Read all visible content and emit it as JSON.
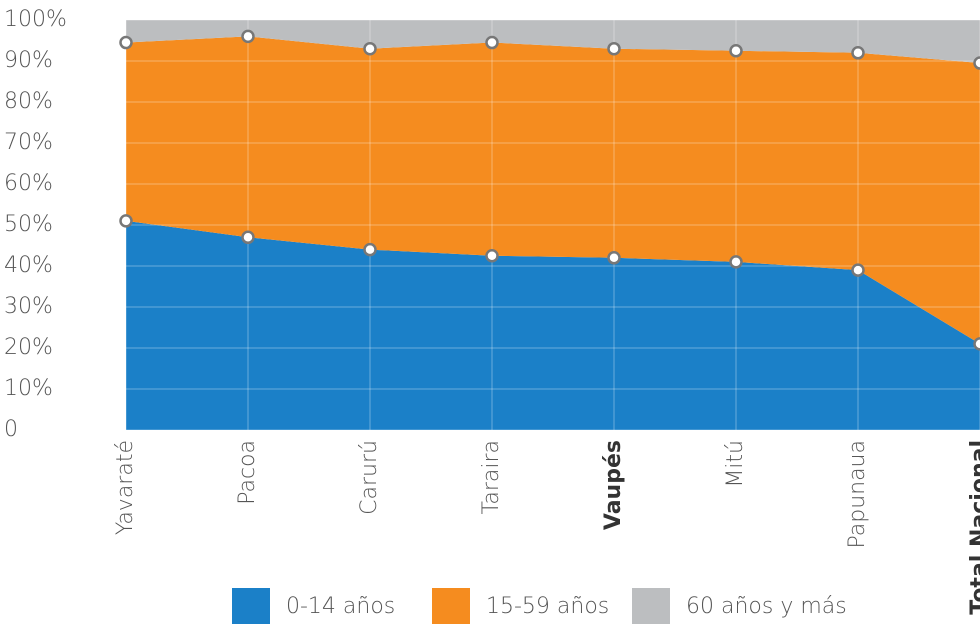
{
  "chart_data": {
    "type": "stacked_area",
    "categories": [
      "Yavaraté",
      "Pacoa",
      "Carurú",
      "Taraira",
      "Vaupés",
      "Mitú",
      "Papunaua",
      "Total Nacional"
    ],
    "bold_categories": [
      4,
      7
    ],
    "series": [
      {
        "name": "0-14 años",
        "color": "#1b80c8",
        "values": [
          51,
          47,
          44,
          42.5,
          42,
          41,
          39,
          21
        ],
        "markers": true
      },
      {
        "name": "15-59 años",
        "color": "#f58c1f",
        "values": [
          43.5,
          49,
          49,
          52,
          51,
          51.5,
          53,
          68.5
        ],
        "markers": true
      },
      {
        "name": "60 años y más",
        "color": "#bcbec0",
        "values": [
          5.5,
          4,
          7,
          5.5,
          7,
          7.5,
          8,
          10.5
        ],
        "markers": false
      }
    ],
    "ylim": [
      0,
      100
    ],
    "yticks": [
      0,
      {
        "value": 10,
        "label": "10%"
      },
      {
        "value": 20,
        "label": "20%"
      },
      {
        "value": 30,
        "label": "30%"
      },
      {
        "value": 40,
        "label": "40%"
      },
      {
        "value": 50,
        "label": "50%"
      },
      {
        "value": 60,
        "label": "60%"
      },
      {
        "value": 70,
        "label": "70%"
      },
      {
        "value": 80,
        "label": "80%"
      },
      {
        "value": 90,
        "label": "90%"
      },
      {
        "value": 100,
        "label": "100%"
      }
    ],
    "grid": true,
    "legend": "bottom"
  }
}
